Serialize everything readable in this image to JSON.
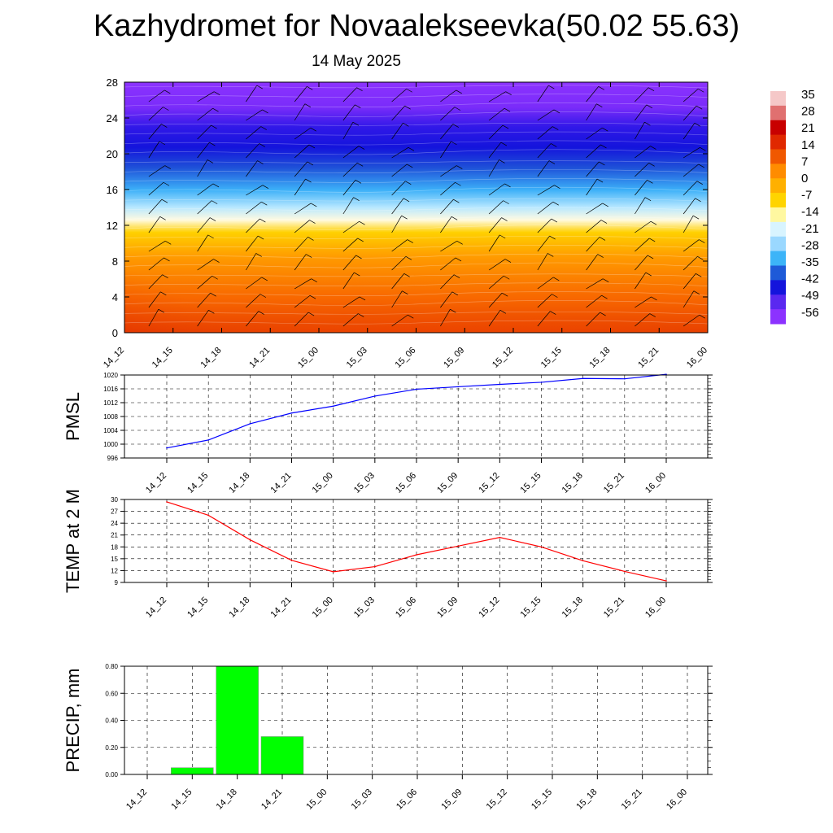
{
  "header": {
    "title": "Kazhydromet for Novaalekseevka(50.02 55.63)",
    "subtitle": "14 May 2025"
  },
  "colorbar": {
    "labels": [
      "35",
      "28",
      "21",
      "14",
      "7",
      "0",
      "-7",
      "-14",
      "-21",
      "-28",
      "-35",
      "-42",
      "-49",
      "-56"
    ],
    "colors": [
      "#f5c8c8",
      "#e07070",
      "#c80000",
      "#e02800",
      "#f05800",
      "#ff8c00",
      "#ffb000",
      "#ffd400",
      "#fff8a0",
      "#d8f4ff",
      "#9ad8ff",
      "#3cb4f8",
      "#1e5ad8",
      "#1414dc",
      "#5a28f0",
      "#8c32ff"
    ]
  },
  "chart_data": [
    {
      "type": "heatmap",
      "title": "",
      "ylabel": "",
      "categories": [
        "14_12",
        "14_15",
        "14_18",
        "14_21",
        "15_00",
        "15_03",
        "15_06",
        "15_09",
        "15_12",
        "15_15",
        "15_18",
        "15_21",
        "16_00"
      ],
      "y_ticks": [
        0,
        4,
        8,
        12,
        16,
        20,
        24,
        28
      ],
      "ylim": [
        0,
        28
      ],
      "color_min": -56,
      "color_max": 35
    },
    {
      "type": "line",
      "ylabel": "PMSL",
      "categories": [
        "14_12",
        "14_15",
        "14_18",
        "14_21",
        "15_00",
        "15_03",
        "15_06",
        "15_09",
        "15_12",
        "15_15",
        "15_18",
        "15_21",
        "16_00"
      ],
      "values": [
        998.9,
        1001.2,
        1005.9,
        1009.0,
        1011.0,
        1013.9,
        1015.9,
        1016.6,
        1017.3,
        1017.9,
        1019.0,
        1018.9,
        1020.2
      ],
      "ylim": [
        996,
        1020
      ],
      "y_ticks": [
        996,
        1000,
        1004,
        1008,
        1012,
        1016,
        1020
      ],
      "color": "#0000ff"
    },
    {
      "type": "line",
      "ylabel": "TEMP at 2 M",
      "categories": [
        "14_12",
        "14_15",
        "14_18",
        "14_21",
        "15_00",
        "15_03",
        "15_06",
        "15_09",
        "15_12",
        "15_15",
        "15_18",
        "15_21",
        "16_00"
      ],
      "values": [
        29.4,
        26.0,
        19.8,
        14.6,
        11.7,
        13.0,
        16.0,
        18.2,
        20.4,
        18.0,
        14.5,
        11.8,
        9.4
      ],
      "ylim": [
        9,
        30
      ],
      "y_ticks": [
        9,
        12,
        15,
        18,
        21,
        24,
        27,
        30
      ],
      "color": "#ff0000"
    },
    {
      "type": "bar",
      "ylabel": "PRECIP, mm",
      "categories": [
        "14_12",
        "14_15",
        "14_18",
        "14_21",
        "15_00",
        "15_03",
        "15_06",
        "15_09",
        "15_12",
        "15_15",
        "15_18",
        "15_21",
        "16_00"
      ],
      "values": [
        0,
        0.05,
        0.8,
        0.28,
        0,
        0,
        0,
        0,
        0,
        0,
        0,
        0,
        0
      ],
      "ylim": [
        0,
        0.8
      ],
      "y_ticks": [
        "0.00",
        "0.20",
        "0.40",
        "0.60",
        "0.80"
      ],
      "color": "#00ff00"
    }
  ]
}
